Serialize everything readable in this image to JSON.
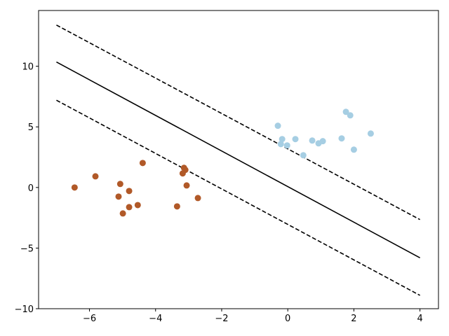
{
  "chart_data": {
    "type": "scatter",
    "xlim": [
      -7.54,
      4.56
    ],
    "ylim": [
      -10,
      14.6
    ],
    "xticks": [
      {
        "value": -6,
        "label": "−6"
      },
      {
        "value": -4,
        "label": "−4"
      },
      {
        "value": -2,
        "label": "−2"
      },
      0,
      2,
      4
    ],
    "yticks": [
      {
        "value": -10,
        "label": "−10"
      },
      {
        "value": -5,
        "label": "−5"
      },
      0,
      5,
      10
    ],
    "series": [
      {
        "color": "#a6cee3",
        "x": [
          -0.3,
          -0.17,
          -0.21,
          -0.02,
          0.23,
          0.47,
          0.74,
          0.93,
          1.06,
          1.63,
          1.76,
          1.89,
          2.0,
          2.51
        ],
        "values": [
          5.09,
          3.99,
          3.58,
          3.47,
          3.99,
          2.66,
          3.87,
          3.64,
          3.82,
          4.05,
          6.24,
          5.95,
          3.12,
          4.45
        ]
      },
      {
        "color": "#b15928",
        "x": [
          -6.45,
          -5.82,
          -5.07,
          -4.8,
          -5.12,
          -4.8,
          -4.99,
          -4.54,
          -4.39,
          -3.14,
          -3.1,
          -3.18,
          -3.06,
          -3.35,
          -2.72
        ],
        "values": [
          0,
          0.92,
          0.29,
          -0.29,
          -0.75,
          -1.62,
          -2.14,
          -1.45,
          2.02,
          1.62,
          1.45,
          1.16,
          0.17,
          -1.56,
          -0.87
        ]
      }
    ],
    "lines": [
      {
        "style": "dashed",
        "color": "#000000",
        "x": [
          -7,
          4
        ],
        "values": [
          13.4,
          -2.65
        ]
      },
      {
        "style": "solid",
        "color": "#000000",
        "x": [
          -7,
          4
        ],
        "values": [
          10.35,
          -5.8
        ]
      },
      {
        "style": "dashed",
        "color": "#000000",
        "x": [
          -7,
          4
        ],
        "values": [
          7.2,
          -8.9
        ]
      }
    ]
  }
}
